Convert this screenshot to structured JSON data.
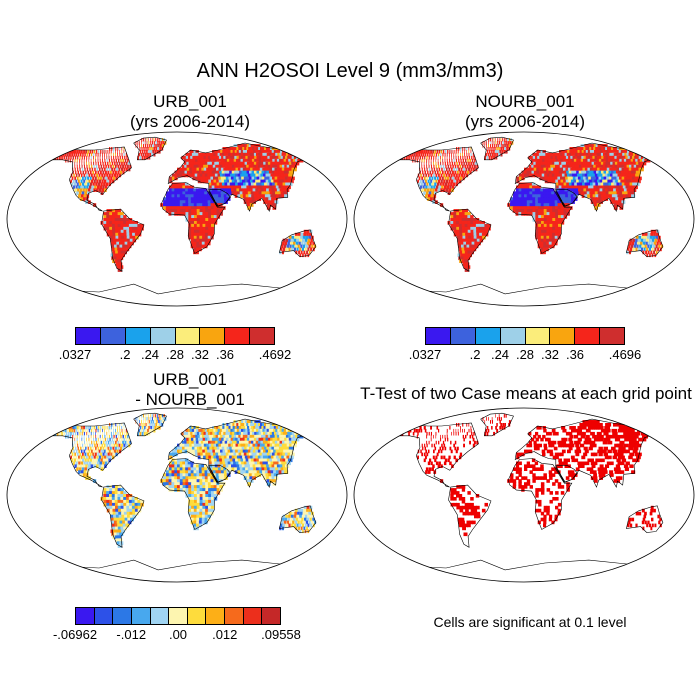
{
  "main_title": "ANN H2OSOI Level 9 (mm3/mm3)",
  "panels": {
    "top_left": {
      "title_line1": "URB_001",
      "title_line2": "(yrs 2006-2014)"
    },
    "top_right": {
      "title_line1": "NOURB_001",
      "title_line2": "(yrs 2006-2014)"
    },
    "bottom_left": {
      "title_line1": "URB_001",
      "title_line2": "- NOURB_001"
    },
    "bottom_right": {
      "title": "T-Test of two Case means at each grid point",
      "note": "Cells are significant at 0.1 level"
    }
  },
  "colorbars": {
    "top_left": {
      "colors": [
        "#3a18f0",
        "#3d62dd",
        "#1aa2ec",
        "#9ed0e8",
        "#fbed7b",
        "#f9a50f",
        "#f5251b",
        "#cf2e2e"
      ],
      "labels": [
        ".0327",
        ".2",
        ".24",
        ".28",
        ".32",
        ".36",
        ".4692"
      ]
    },
    "top_right": {
      "colors": [
        "#3a18f0",
        "#3d62dd",
        "#1aa2ec",
        "#9ed0e8",
        "#fbed7b",
        "#f9a50f",
        "#f5251b",
        "#cf2e2e"
      ],
      "labels": [
        ".0327",
        ".2",
        ".24",
        ".28",
        ".32",
        ".36",
        ".4696"
      ]
    },
    "bottom_left": {
      "colors": [
        "#3a18f0",
        "#2d51e8",
        "#2c78e6",
        "#48a8ee",
        "#a0d4f2",
        "#fdf5b0",
        "#fedc3c",
        "#fdaf17",
        "#f66a1c",
        "#ec2f1c",
        "#c52828"
      ],
      "labels": [
        "-.06962",
        "-.012",
        ".00",
        ".012",
        ".09558"
      ]
    }
  },
  "colors": {
    "significance": "#ee0000",
    "land_outline": "#000000"
  }
}
